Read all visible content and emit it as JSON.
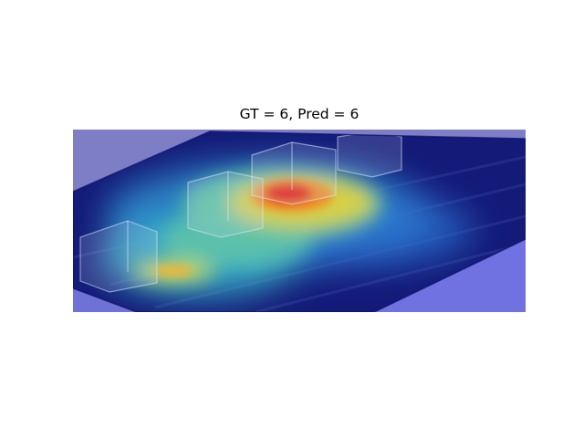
{
  "figure": {
    "title": "GT = 6, Pred = 6"
  },
  "image": {
    "subject": "aerial-view-of-building-blocks-with-attention-heatmap",
    "colormap": "jet",
    "overlay_colors": {
      "background": "#7f7fc4",
      "low": "#1a23a8",
      "mid": "#3fb8c9",
      "high": "#e6d23a",
      "peak": "#e0241f"
    }
  }
}
